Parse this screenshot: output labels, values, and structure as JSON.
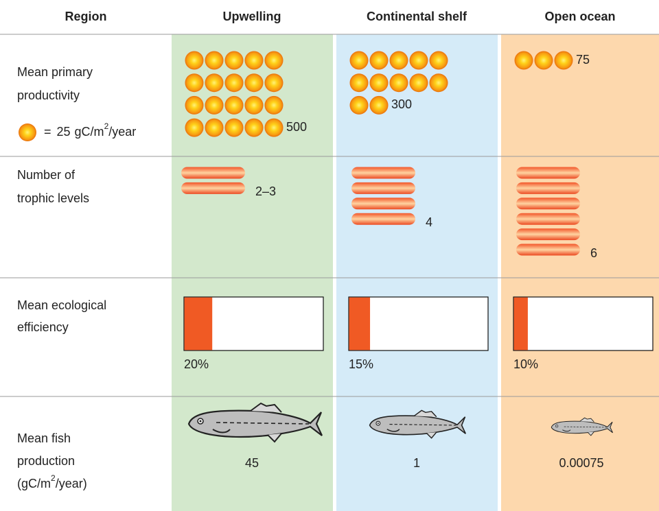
{
  "header": [
    "Region",
    "Upwelling",
    "Continental shelf",
    "Open ocean"
  ],
  "productivity": {
    "label_lines": [
      "Mean primary",
      "productivity"
    ],
    "legend": {
      "prefix": "=",
      "value": 25,
      "unit": "gC/m",
      "sup": "2",
      "suffix": "/year"
    },
    "values": [
      500,
      300,
      75
    ]
  },
  "trophic": {
    "label_lines": [
      "Number of",
      "trophic levels"
    ],
    "values": [
      {
        "value": 2,
        "label": "2–3"
      },
      4,
      6
    ]
  },
  "efficiency": {
    "label_lines": [
      "Mean ecological",
      "efficiency"
    ],
    "values": [
      20,
      15,
      10
    ],
    "value_labels": [
      "20%",
      "15%",
      "10%"
    ],
    "xlim": [
      0,
      100
    ]
  },
  "fish": {
    "label_lines": [
      "Mean fish",
      "production"
    ],
    "unit": {
      "open": "(gC/m",
      "sup": "2",
      "close": "/year)"
    },
    "values": [
      45,
      1,
      0.00075
    ]
  }
}
